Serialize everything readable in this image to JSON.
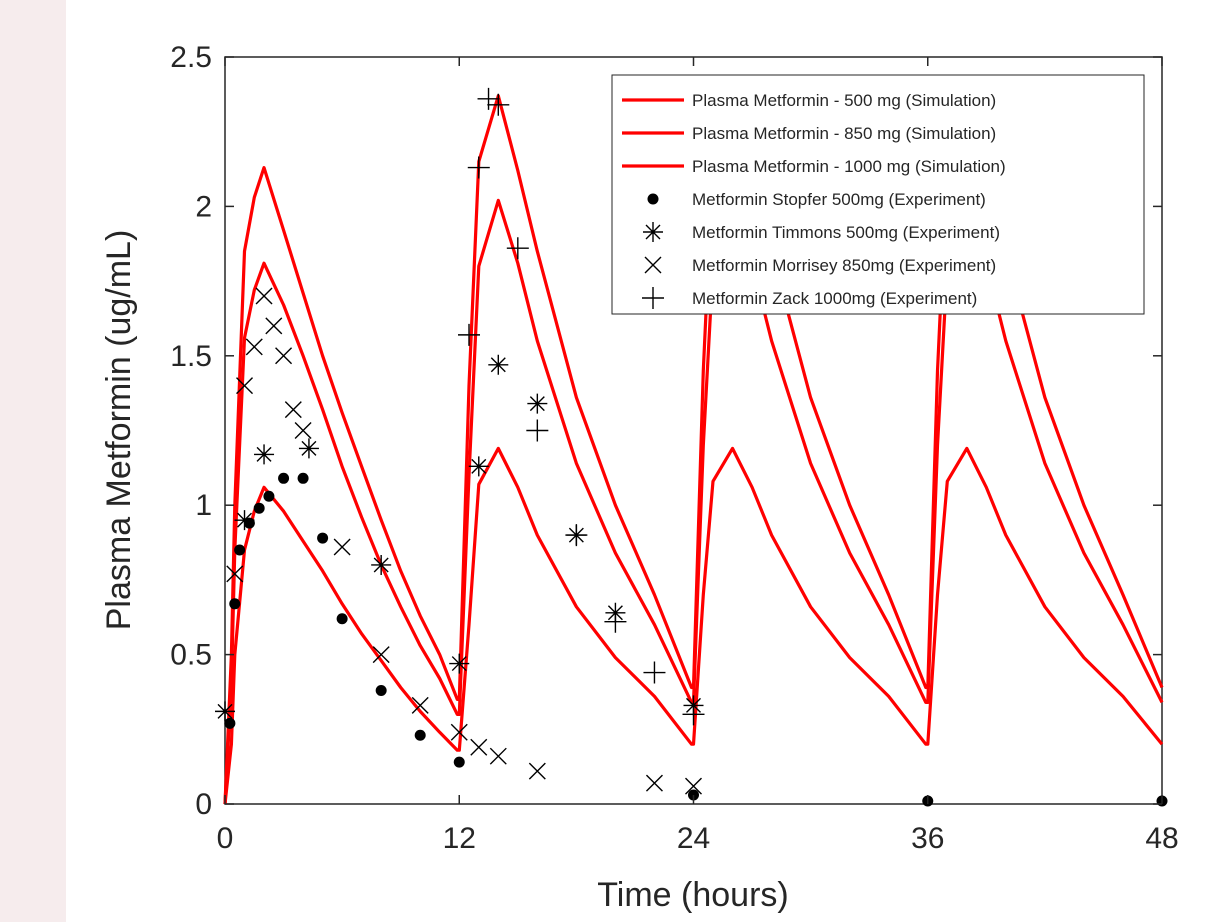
{
  "chart_data": {
    "type": "line",
    "title": "",
    "xlabel": "Time (hours)",
    "ylabel": "Plasma Metformin (ug/mL)",
    "xlim": [
      0,
      48
    ],
    "ylim": [
      0,
      2.5
    ],
    "xticks": [
      0,
      12,
      24,
      36,
      48
    ],
    "yticks": [
      0,
      0.5,
      1,
      1.5,
      2,
      2.5
    ],
    "xtick_labels": [
      "0",
      "12",
      "24",
      "36",
      "48"
    ],
    "ytick_labels": [
      "0",
      "0.5",
      "1",
      "1.5",
      "2",
      "2.5"
    ],
    "grid": false,
    "legend_position": "top-right",
    "colors": {
      "simulation": "#ff0000",
      "experiment": "#000000",
      "axis": "#262626",
      "background_band": "#f6eced"
    },
    "series": [
      {
        "name": "Plasma Metformin - 500 mg (Simulation)",
        "kind": "line",
        "color": "#ff0000",
        "x": [
          0,
          0.33,
          0.5,
          1,
          1.5,
          2,
          3,
          4,
          5,
          6,
          7,
          8,
          9,
          10,
          11,
          11.9,
          12,
          12.5,
          13,
          14,
          15,
          16,
          18,
          20,
          22,
          23.9,
          24,
          24.5,
          25,
          26,
          27,
          28,
          30,
          32,
          34,
          35.9,
          36,
          36.5,
          37,
          38,
          39,
          40,
          42,
          44,
          46,
          48
        ],
        "y": [
          0,
          0.2,
          0.5,
          0.85,
          0.98,
          1.06,
          0.98,
          0.88,
          0.78,
          0.67,
          0.57,
          0.48,
          0.39,
          0.31,
          0.24,
          0.18,
          0.18,
          0.6,
          1.07,
          1.19,
          1.06,
          0.9,
          0.66,
          0.49,
          0.36,
          0.2,
          0.2,
          0.7,
          1.08,
          1.19,
          1.06,
          0.9,
          0.66,
          0.49,
          0.36,
          0.2,
          0.2,
          0.7,
          1.08,
          1.19,
          1.06,
          0.9,
          0.66,
          0.49,
          0.36,
          0.2
        ]
      },
      {
        "name": "Plasma Metformin - 850 mg (Simulation)",
        "kind": "line",
        "color": "#ff0000",
        "x": [
          0,
          0.33,
          0.5,
          1,
          1.5,
          2,
          3,
          4,
          5,
          6,
          7,
          8,
          9,
          10,
          11,
          11.9,
          12,
          12.5,
          13,
          14,
          15,
          16,
          18,
          20,
          22,
          23.9,
          24,
          24.5,
          25,
          26,
          27,
          28,
          30,
          32,
          34,
          35.9,
          36,
          36.5,
          37,
          38,
          39,
          40,
          42,
          44,
          46,
          48
        ],
        "y": [
          0,
          0.4,
          0.85,
          1.56,
          1.72,
          1.81,
          1.67,
          1.5,
          1.32,
          1.13,
          0.96,
          0.8,
          0.66,
          0.53,
          0.42,
          0.3,
          0.3,
          1.1,
          1.8,
          2.02,
          1.81,
          1.55,
          1.14,
          0.84,
          0.6,
          0.34,
          0.34,
          1.2,
          1.8,
          2.02,
          1.81,
          1.55,
          1.14,
          0.84,
          0.6,
          0.34,
          0.34,
          1.2,
          1.8,
          2.02,
          1.81,
          1.55,
          1.14,
          0.84,
          0.6,
          0.34
        ]
      },
      {
        "name": "Plasma Metformin - 1000 mg (Simulation)",
        "kind": "line",
        "color": "#ff0000",
        "x": [
          0,
          0.33,
          0.5,
          1,
          1.5,
          2,
          3,
          4,
          5,
          6,
          7,
          8,
          9,
          10,
          11,
          11.9,
          12,
          12.5,
          13,
          14,
          15,
          16,
          18,
          20,
          22,
          23.9,
          24,
          24.5,
          25,
          26,
          27,
          28,
          30,
          32,
          34,
          35.9,
          36,
          36.5,
          37,
          38,
          39,
          40,
          42,
          44,
          46,
          48
        ],
        "y": [
          0,
          0.5,
          1.0,
          1.85,
          2.03,
          2.13,
          1.92,
          1.71,
          1.5,
          1.31,
          1.13,
          0.95,
          0.78,
          0.63,
          0.5,
          0.35,
          0.35,
          1.4,
          2.15,
          2.37,
          2.12,
          1.85,
          1.36,
          1.0,
          0.7,
          0.39,
          0.39,
          1.45,
          2.15,
          2.37,
          2.12,
          1.85,
          1.36,
          1.0,
          0.7,
          0.39,
          0.39,
          1.45,
          2.15,
          2.37,
          2.12,
          1.85,
          1.36,
          1.0,
          0.7,
          0.39
        ]
      },
      {
        "name": "Metformin Stopfer 500mg (Experiment)",
        "kind": "scatter",
        "marker": "dot",
        "color": "#000000",
        "x": [
          0.25,
          0.5,
          0.75,
          1.25,
          1.75,
          2.25,
          3,
          4,
          5,
          6,
          8,
          10,
          12,
          24,
          36,
          48
        ],
        "y": [
          0.27,
          0.67,
          0.85,
          0.94,
          0.99,
          1.03,
          1.09,
          1.09,
          0.89,
          0.62,
          0.38,
          0.23,
          0.14,
          0.03,
          0.01,
          0.01
        ]
      },
      {
        "name": "Metformin Timmons 500mg (Experiment)",
        "kind": "scatter",
        "marker": "asterisk",
        "color": "#000000",
        "x": [
          0,
          1,
          2,
          4.3,
          8,
          12,
          13,
          14,
          16,
          18,
          20,
          24
        ],
        "y": [
          0.31,
          0.95,
          1.17,
          1.19,
          0.8,
          0.47,
          1.13,
          1.47,
          1.34,
          0.9,
          0.64,
          0.33
        ]
      },
      {
        "name": "Metformin Morrisey 850mg (Experiment)",
        "kind": "scatter",
        "marker": "x",
        "color": "#000000",
        "x": [
          0.5,
          1,
          1.5,
          2,
          2.5,
          3,
          3.5,
          4,
          6,
          8,
          10,
          12,
          13,
          14,
          16,
          22,
          24
        ],
        "y": [
          0.77,
          1.4,
          1.53,
          1.7,
          1.6,
          1.5,
          1.32,
          1.25,
          0.86,
          0.5,
          0.33,
          0.24,
          0.19,
          0.16,
          0.11,
          0.07,
          0.06
        ]
      },
      {
        "name": "Metformin Zack 1000mg (Experiment)",
        "kind": "scatter",
        "marker": "plus",
        "color": "#000000",
        "x": [
          12.5,
          13,
          13.5,
          14,
          15,
          16,
          18,
          20,
          22,
          24
        ],
        "y": [
          1.57,
          2.13,
          2.36,
          2.34,
          1.86,
          1.25,
          0.9,
          0.61,
          0.44,
          0.3
        ]
      }
    ]
  }
}
